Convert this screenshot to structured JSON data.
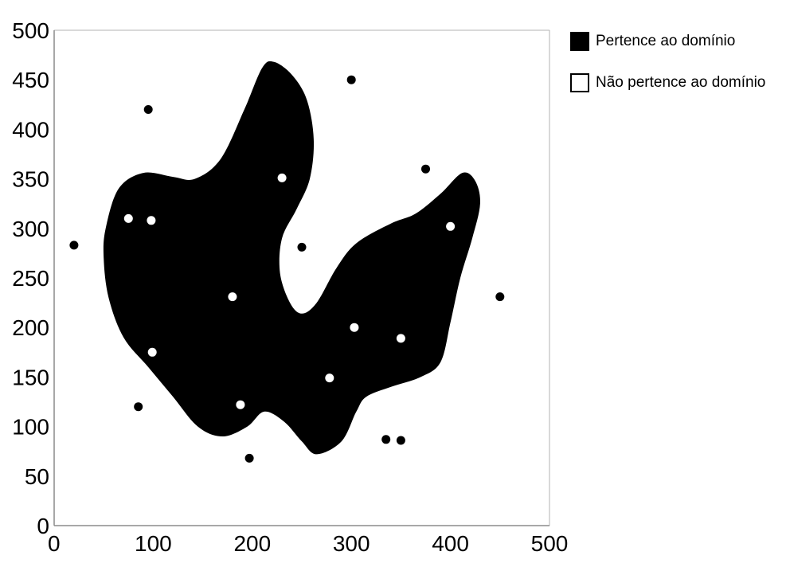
{
  "chart_data": {
    "type": "scatter",
    "title": "",
    "xlabel": "",
    "ylabel": "",
    "xlim": [
      0,
      500
    ],
    "ylim": [
      0,
      500
    ],
    "x_ticks": [
      "0",
      "100",
      "200",
      "300",
      "400",
      "500"
    ],
    "y_ticks": [
      "0",
      "50",
      "100",
      "150",
      "200",
      "250",
      "300",
      "350",
      "400",
      "450",
      "500"
    ],
    "grid": false,
    "legend_position": "top-right",
    "region": {
      "color": "#000000",
      "boundary": [
        [
          52,
          300
        ],
        [
          65,
          340
        ],
        [
          90,
          356
        ],
        [
          120,
          352
        ],
        [
          142,
          350
        ],
        [
          168,
          370
        ],
        [
          192,
          420
        ],
        [
          210,
          462
        ],
        [
          222,
          468
        ],
        [
          240,
          455
        ],
        [
          255,
          430
        ],
        [
          262,
          390
        ],
        [
          258,
          350
        ],
        [
          245,
          320
        ],
        [
          230,
          290
        ],
        [
          228,
          255
        ],
        [
          238,
          225
        ],
        [
          250,
          214
        ],
        [
          265,
          225
        ],
        [
          285,
          260
        ],
        [
          305,
          285
        ],
        [
          340,
          305
        ],
        [
          365,
          315
        ],
        [
          390,
          335
        ],
        [
          412,
          356
        ],
        [
          425,
          348
        ],
        [
          430,
          325
        ],
        [
          422,
          290
        ],
        [
          410,
          250
        ],
        [
          400,
          205
        ],
        [
          390,
          165
        ],
        [
          370,
          150
        ],
        [
          340,
          140
        ],
        [
          315,
          130
        ],
        [
          305,
          115
        ],
        [
          290,
          85
        ],
        [
          265,
          72
        ],
        [
          250,
          85
        ],
        [
          232,
          105
        ],
        [
          212,
          115
        ],
        [
          195,
          100
        ],
        [
          170,
          90
        ],
        [
          145,
          100
        ],
        [
          120,
          130
        ],
        [
          95,
          160
        ],
        [
          70,
          190
        ],
        [
          55,
          230
        ],
        [
          50,
          270
        ]
      ]
    },
    "series": [
      {
        "name": "Pertence ao domínio",
        "color": "#000000",
        "points": [
          [
            20,
            283
          ],
          [
            95,
            420
          ],
          [
            85,
            120
          ],
          [
            197,
            68
          ],
          [
            250,
            281
          ],
          [
            300,
            450
          ],
          [
            375,
            360
          ],
          [
            450,
            231
          ],
          [
            335,
            87
          ],
          [
            350,
            86
          ]
        ]
      },
      {
        "name": "Não pertence ao domínio",
        "color": "#ffffff",
        "points": [
          [
            75,
            310
          ],
          [
            98,
            308
          ],
          [
            99,
            175
          ],
          [
            180,
            231
          ],
          [
            188,
            122
          ],
          [
            230,
            351
          ],
          [
            278,
            149
          ],
          [
            303,
            200
          ],
          [
            350,
            189
          ],
          [
            400,
            302
          ]
        ]
      }
    ]
  }
}
